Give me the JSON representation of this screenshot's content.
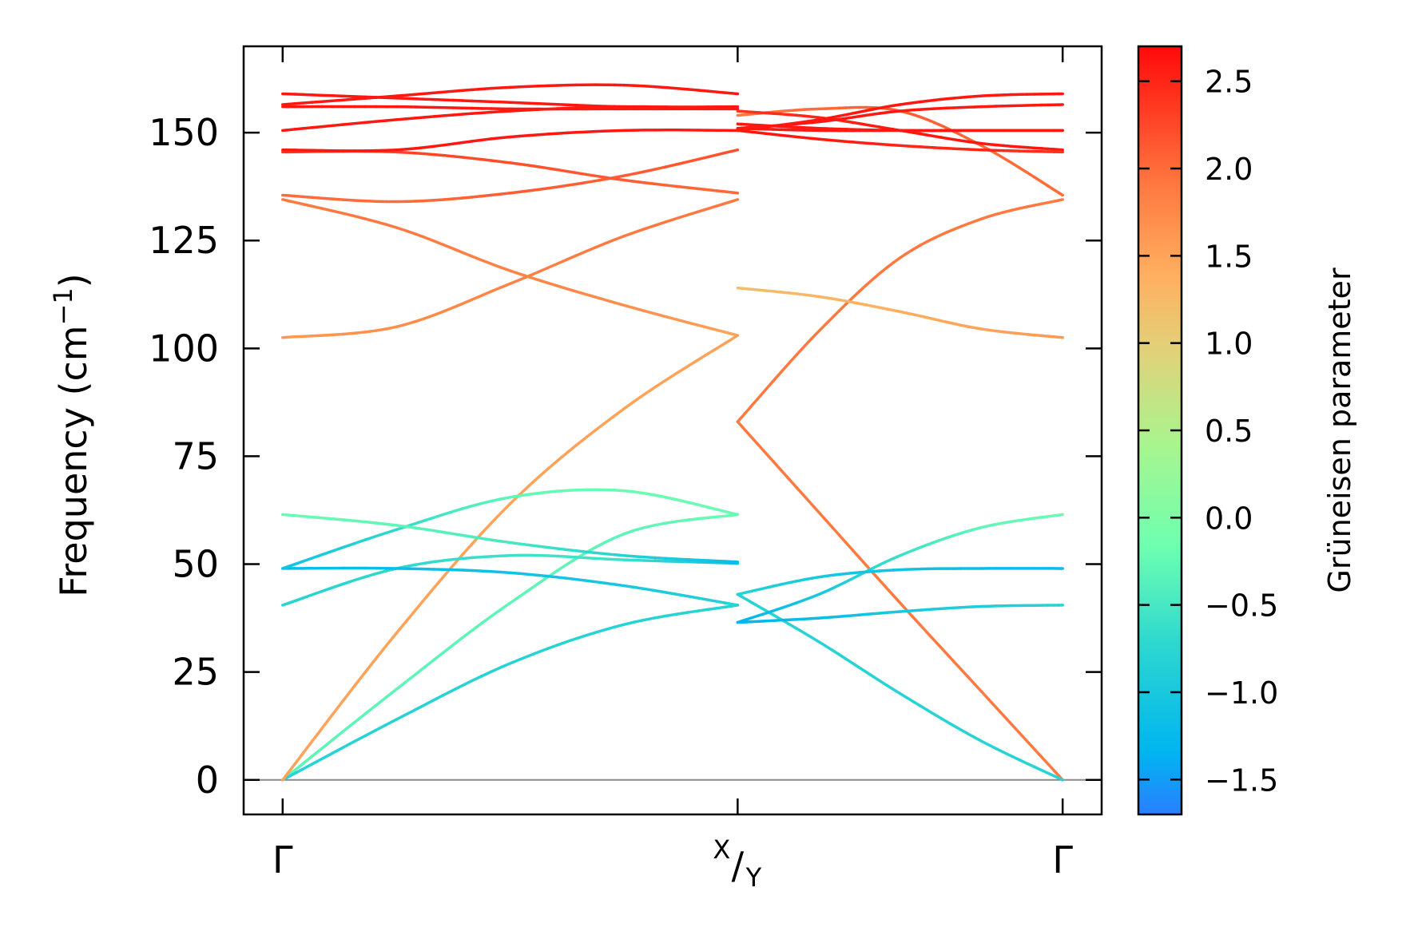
{
  "chart_data": {
    "type": "line",
    "title": "",
    "xlabel": "",
    "ylabel": "Frequency (cm",
    "ylabel_unit_sup": "−1",
    "ylabel_close": ")",
    "ylim": [
      -8,
      170
    ],
    "yticks": [
      0,
      25,
      50,
      75,
      100,
      125,
      150
    ],
    "ytick_labels": [
      "0",
      "25",
      "50",
      "75",
      "100",
      "125",
      "150"
    ],
    "xticks": [
      {
        "x": 0,
        "label": "Γ"
      },
      {
        "x": 1.4,
        "label_top": "X",
        "label_slash": "/",
        "label_bottom": "Y"
      },
      {
        "x": 2.4,
        "label": "Γ"
      }
    ],
    "xlim": [
      -0.12,
      2.52
    ],
    "segments": [
      {
        "path": "Γ–X",
        "x_start": 0,
        "x_end": 1.4
      },
      {
        "path": "Y–Γ",
        "x_start": 1.4,
        "x_end": 2.4
      }
    ],
    "grid": false,
    "zero_line": 0,
    "colorbar": {
      "label": "Grüneisen parameter",
      "range": [
        -1.7,
        2.7
      ],
      "ticks": [
        -1.5,
        -1.0,
        -0.5,
        0.0,
        0.5,
        1.0,
        1.5,
        2.0,
        2.5
      ],
      "tick_labels": [
        "−1.5",
        "−1.0",
        "−0.5",
        "0.0",
        "0.5",
        "1.0",
        "1.5",
        "2.0",
        "2.5"
      ],
      "colormap": "rainbow"
    },
    "series": [
      {
        "x": [
          0,
          0.35,
          0.7,
          1.05,
          1.4
        ],
        "y": [
          0,
          21,
          41,
          57,
          61.5
        ],
        "gruneisen": [
          -0.3,
          -0.3,
          -0.3,
          -0.3,
          -0.2
        ]
      },
      {
        "x": [
          0,
          0.35,
          0.7,
          1.05,
          1.4
        ],
        "y": [
          0,
          14,
          27,
          36,
          40.5
        ],
        "gruneisen": [
          -0.8,
          -0.8,
          -0.8,
          -0.8,
          -0.8
        ]
      },
      {
        "x": [
          0,
          0.35,
          0.7,
          1.05,
          1.4
        ],
        "y": [
          0,
          34,
          64,
          86,
          103
        ],
        "gruneisen": [
          1.5,
          1.5,
          1.5,
          1.5,
          1.5
        ]
      },
      {
        "x": [
          0,
          0.35,
          0.7,
          1.05,
          1.4
        ],
        "y": [
          40.5,
          49,
          52,
          51,
          50.2
        ],
        "gruneisen": [
          -0.8,
          -0.7,
          -0.6,
          -0.6,
          -1.2
        ]
      },
      {
        "x": [
          0,
          0.35,
          0.7,
          1.05,
          1.4
        ],
        "y": [
          49,
          49,
          48,
          45,
          40.5
        ],
        "gruneisen": [
          -1.2,
          -1.2,
          -1.1,
          -1.0,
          -0.8
        ]
      },
      {
        "x": [
          0,
          0.35,
          0.7,
          1.05,
          1.4
        ],
        "y": [
          49,
          58,
          65.5,
          67,
          61.5
        ],
        "gruneisen": [
          -1.1,
          -0.7,
          -0.3,
          -0.2,
          -0.2
        ]
      },
      {
        "x": [
          0,
          0.35,
          0.7,
          1.05,
          1.4
        ],
        "y": [
          61.5,
          59,
          55,
          52,
          50.5
        ],
        "gruneisen": [
          -0.2,
          -0.3,
          -0.5,
          -0.8,
          -1.2
        ]
      },
      {
        "x": [
          0,
          0.35,
          0.7,
          1.05,
          1.4
        ],
        "y": [
          102.5,
          105,
          115,
          126,
          134.5
        ],
        "gruneisen": [
          1.6,
          1.7,
          1.8,
          1.9,
          1.9
        ]
      },
      {
        "x": [
          0,
          0.35,
          0.7,
          1.05,
          1.4
        ],
        "y": [
          134.5,
          128,
          118,
          110,
          103
        ],
        "gruneisen": [
          1.9,
          1.9,
          1.8,
          1.7,
          1.5
        ]
      },
      {
        "x": [
          0,
          0.35,
          0.7,
          1.05,
          1.4
        ],
        "y": [
          135.5,
          134,
          136,
          140,
          146
        ],
        "gruneisen": [
          2.0,
          2.0,
          2.1,
          2.1,
          2.2
        ]
      },
      {
        "x": [
          0,
          0.35,
          0.7,
          1.05,
          1.4
        ],
        "y": [
          145.5,
          145.5,
          143,
          139,
          136
        ],
        "gruneisen": [
          2.4,
          2.3,
          2.2,
          2.1,
          2.0
        ]
      },
      {
        "x": [
          0,
          0.35,
          0.7,
          1.05,
          1.4
        ],
        "y": [
          146,
          146,
          149,
          150.5,
          150.5
        ],
        "gruneisen": [
          2.6,
          2.6,
          2.6,
          2.6,
          2.6
        ]
      },
      {
        "x": [
          0,
          0.35,
          0.7,
          1.05,
          1.4
        ],
        "y": [
          150.5,
          153,
          155,
          156,
          155.5
        ],
        "gruneisen": [
          2.6,
          2.6,
          2.6,
          2.6,
          2.6
        ]
      },
      {
        "x": [
          0,
          0.35,
          0.7,
          1.05,
          1.4
        ],
        "y": [
          156.5,
          158.5,
          160.5,
          161,
          159
        ],
        "gruneisen": [
          2.6,
          2.6,
          2.6,
          2.6,
          2.6
        ]
      },
      {
        "x": [
          0,
          0.35,
          0.7,
          1.05,
          1.4
        ],
        "y": [
          159,
          158,
          157,
          156,
          156
        ],
        "gruneisen": [
          2.6,
          2.6,
          2.6,
          2.6,
          2.6
        ]
      },
      {
        "x": [
          0,
          0.35,
          0.7,
          1.05,
          1.4
        ],
        "y": [
          156,
          156,
          155.5,
          155.5,
          155.5
        ],
        "gruneisen": [
          2.6,
          2.6,
          2.6,
          2.6,
          2.6
        ]
      },
      {
        "x": [
          1.4,
          1.65,
          1.9,
          2.15,
          2.4
        ],
        "y": [
          83,
          62,
          41,
          20.5,
          0
        ],
        "gruneisen": [
          1.9,
          1.9,
          1.9,
          1.9,
          1.9
        ]
      },
      {
        "x": [
          1.4,
          1.65,
          1.9,
          2.15,
          2.4
        ],
        "y": [
          83,
          104,
          121,
          130,
          134.5
        ],
        "gruneisen": [
          1.9,
          1.9,
          1.9,
          1.9,
          1.9
        ]
      },
      {
        "x": [
          1.4,
          1.65,
          1.9,
          2.15,
          2.4
        ],
        "y": [
          43,
          32,
          20,
          9,
          0
        ],
        "gruneisen": [
          -0.8,
          -0.8,
          -0.8,
          -0.8,
          -0.8
        ]
      },
      {
        "x": [
          1.4,
          1.65,
          1.9,
          2.15,
          2.4
        ],
        "y": [
          36.5,
          43,
          52,
          58.5,
          61.5
        ],
        "gruneisen": [
          -1.3,
          -1.0,
          -0.6,
          -0.3,
          -0.2
        ]
      },
      {
        "x": [
          1.4,
          1.65,
          1.9,
          2.15,
          2.4
        ],
        "y": [
          36.5,
          37.5,
          39,
          40.2,
          40.5
        ],
        "gruneisen": [
          -1.3,
          -1.2,
          -1.0,
          -0.9,
          -0.8
        ]
      },
      {
        "x": [
          1.4,
          1.65,
          1.9,
          2.15,
          2.4
        ],
        "y": [
          43,
          47,
          48.7,
          49,
          49
        ],
        "gruneisen": [
          -0.8,
          -1.0,
          -1.1,
          -1.2,
          -1.2
        ]
      },
      {
        "x": [
          1.4,
          1.65,
          1.9,
          2.15,
          2.4
        ],
        "y": [
          114,
          112,
          108.5,
          104.5,
          102.5
        ],
        "gruneisen": [
          1.2,
          1.3,
          1.4,
          1.5,
          1.6
        ]
      },
      {
        "x": [
          1.4,
          1.65,
          1.9,
          2.15,
          2.4
        ],
        "y": [
          154,
          155.5,
          155,
          147,
          135.5
        ],
        "gruneisen": [
          1.9,
          2.0,
          2.1,
          2.0,
          2.0
        ]
      },
      {
        "x": [
          1.4,
          1.65,
          1.9,
          2.15,
          2.4
        ],
        "y": [
          155,
          153.5,
          150.5,
          147.5,
          146
        ],
        "gruneisen": [
          2.4,
          2.5,
          2.6,
          2.6,
          2.6
        ]
      },
      {
        "x": [
          1.4,
          1.65,
          1.9,
          2.15,
          2.4
        ],
        "y": [
          151,
          150.5,
          150.5,
          150.5,
          150.5
        ],
        "gruneisen": [
          2.6,
          2.6,
          2.6,
          2.6,
          2.6
        ]
      },
      {
        "x": [
          1.4,
          1.65,
          1.9,
          2.15,
          2.4
        ],
        "y": [
          150.5,
          148.5,
          147,
          146,
          145.5
        ],
        "gruneisen": [
          2.6,
          2.6,
          2.5,
          2.5,
          2.4
        ]
      },
      {
        "x": [
          1.4,
          1.65,
          1.9,
          2.15,
          2.4
        ],
        "y": [
          150.5,
          153,
          156.5,
          158.5,
          159
        ],
        "gruneisen": [
          2.6,
          2.6,
          2.6,
          2.6,
          2.6
        ]
      },
      {
        "x": [
          1.4,
          1.65,
          1.9,
          2.15,
          2.4
        ],
        "y": [
          151,
          152.5,
          155,
          156,
          156.5
        ],
        "gruneisen": [
          2.6,
          2.6,
          2.6,
          2.6,
          2.6
        ]
      },
      {
        "x": [
          1.4,
          1.65,
          1.9,
          2.15,
          2.4
        ],
        "y": [
          152,
          151,
          150.5,
          150.5,
          150.5
        ],
        "gruneisen": [
          2.6,
          2.6,
          2.6,
          2.6,
          2.6
        ]
      }
    ]
  }
}
